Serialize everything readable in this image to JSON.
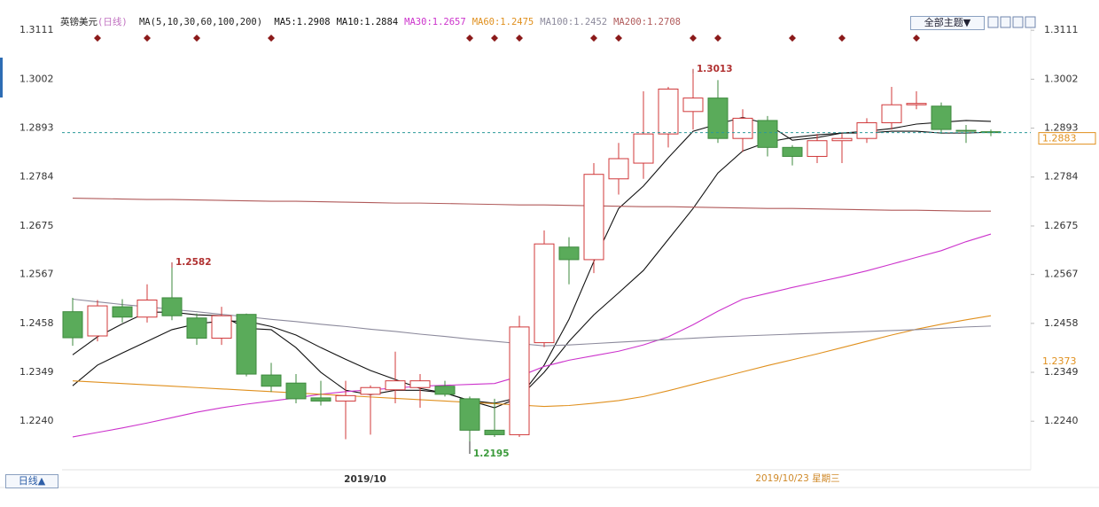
{
  "chart_data": {
    "type": "candlestick",
    "title": "英镑美元",
    "period": "(日线)",
    "ma_header": "MA(5,10,30,60,100,200)",
    "ylim": [
      1.2135,
      1.3135
    ],
    "yticks": [
      1.3111,
      {
        "value": 1.3002,
        "label": "1.3002"
      },
      1.2893,
      1.2784,
      1.2675,
      1.2567,
      1.2458,
      1.2349,
      {
        "value": 1.224,
        "label": "1.2240"
      }
    ],
    "open": [
      1.2484,
      1.243,
      1.2495,
      1.2472,
      1.2515,
      1.247,
      1.2425,
      1.2478,
      1.2343,
      1.2325,
      1.2292,
      1.2285,
      1.23,
      1.231,
      1.2315,
      1.2318,
      1.229,
      1.222,
      1.221,
      1.2415,
      1.2628,
      1.26,
      1.278,
      1.2815,
      1.288,
      1.293,
      1.296,
      1.287,
      1.291,
      1.285,
      1.283,
      1.2865,
      1.287,
      1.2905,
      1.2945,
      1.2942,
      1.2888,
      1.2885
    ],
    "high": [
      1.2515,
      1.251,
      1.2512,
      1.2545,
      1.2582,
      1.248,
      1.2495,
      1.248,
      1.237,
      1.2345,
      1.233,
      1.233,
      1.232,
      1.2395,
      1.2345,
      1.233,
      1.2295,
      1.229,
      1.2475,
      1.2665,
      1.265,
      1.2815,
      1.286,
      1.2975,
      1.2985,
      1.3013,
      1.3,
      1.2935,
      1.292,
      1.2855,
      1.288,
      1.288,
      1.2915,
      1.2985,
      1.2975,
      1.295,
      1.29,
      1.289
    ],
    "low": [
      1.2408,
      1.2418,
      1.246,
      1.246,
      1.2465,
      1.241,
      1.241,
      1.234,
      1.2305,
      1.228,
      1.2275,
      1.22,
      1.221,
      1.228,
      1.227,
      1.2295,
      1.2195,
      1.2205,
      1.2205,
      1.2405,
      1.2545,
      1.257,
      1.2745,
      1.278,
      1.285,
      1.289,
      1.286,
      1.284,
      1.283,
      1.281,
      1.2815,
      1.2815,
      1.286,
      1.289,
      1.2935,
      1.288,
      1.286,
      1.2875
    ],
    "close": [
      1.2426,
      1.2497,
      1.2472,
      1.251,
      1.2475,
      1.2425,
      1.2475,
      1.2345,
      1.2318,
      1.229,
      1.2285,
      1.2297,
      1.2315,
      1.233,
      1.233,
      1.23,
      1.222,
      1.221,
      1.245,
      1.2635,
      1.26,
      1.279,
      1.2825,
      1.288,
      1.298,
      1.296,
      1.287,
      1.2915,
      1.285,
      1.283,
      1.2865,
      1.287,
      1.2905,
      1.2945,
      1.2948,
      1.289,
      1.2887,
      1.2883
    ],
    "up_color": "#d0383a",
    "down_color": "#5aab5a",
    "series": [
      {
        "name": "MA5",
        "label": "MA5:1.2908",
        "color": "#111111",
        "values": [
          1.2388,
          1.2428,
          1.2457,
          1.2483,
          1.2483,
          1.2477,
          1.2475,
          1.2447,
          1.2444,
          1.2404,
          1.2349,
          1.2309,
          1.2299,
          1.2309,
          1.2309,
          1.2303,
          1.2286,
          1.227,
          1.2293,
          1.2365,
          1.2467,
          1.2596,
          1.2714,
          1.2764,
          1.2827,
          1.2886,
          1.2902,
          1.2917,
          1.2902,
          1.2866,
          1.2872,
          1.2882,
          1.2886,
          1.2892,
          1.2902,
          1.2906,
          1.291,
          1.2908
        ]
      },
      {
        "name": "MA10",
        "label": "MA10:1.2884",
        "color": "#111111",
        "values": [
          1.2319,
          1.2365,
          1.2392,
          1.2418,
          1.2444,
          1.2457,
          1.2463,
          1.2463,
          1.2451,
          1.2432,
          1.2404,
          1.2378,
          1.2353,
          1.2333,
          1.2313,
          1.2303,
          1.2286,
          1.228,
          1.2293,
          1.2349,
          1.2418,
          1.2477,
          1.2526,
          1.2576,
          1.2645,
          1.2714,
          1.2793,
          1.2842,
          1.2862,
          1.2872,
          1.2878,
          1.2882,
          1.2882,
          1.2886,
          1.2886,
          1.2882,
          1.2882,
          1.2884
        ]
      },
      {
        "name": "MA30",
        "label": "MA30:1.2657",
        "color": "#cc33cc",
        "values": [
          1.2205,
          1.2215,
          1.2225,
          1.2236,
          1.2248,
          1.226,
          1.227,
          1.2278,
          1.2285,
          1.2292,
          1.23,
          1.2306,
          1.231,
          1.2314,
          1.2318,
          1.232,
          1.2322,
          1.2324,
          1.234,
          1.2362,
          1.2376,
          1.2386,
          1.2396,
          1.241,
          1.2428,
          1.2455,
          1.2485,
          1.2512,
          1.2525,
          1.2538,
          1.255,
          1.2562,
          1.2575,
          1.259,
          1.2605,
          1.262,
          1.264,
          1.2657
        ]
      },
      {
        "name": "MA60",
        "label": "MA60:1.2475",
        "color": "#e0901e",
        "values": [
          1.233,
          1.2327,
          1.2324,
          1.2321,
          1.2318,
          1.2315,
          1.2312,
          1.2309,
          1.2306,
          1.2303,
          1.23,
          1.2297,
          1.2294,
          1.2291,
          1.2288,
          1.2285,
          1.2282,
          1.2279,
          1.2276,
          1.2273,
          1.2275,
          1.228,
          1.2286,
          1.2295,
          1.2308,
          1.2322,
          1.2336,
          1.235,
          1.2364,
          1.2377,
          1.239,
          1.2404,
          1.2418,
          1.2432,
          1.2445,
          1.2456,
          1.2466,
          1.2475
        ]
      },
      {
        "name": "MA100",
        "label": "MA100:1.2452",
        "color": "#8c8a9c",
        "values": [
          1.2512,
          1.2506,
          1.25,
          1.2495,
          1.2489,
          1.2484,
          1.2478,
          1.2473,
          1.2467,
          1.2462,
          1.2456,
          1.2451,
          1.2445,
          1.244,
          1.2434,
          1.2429,
          1.2423,
          1.2418,
          1.2413,
          1.2408,
          1.241,
          1.2413,
          1.2416,
          1.2419,
          1.2422,
          1.2425,
          1.2428,
          1.243,
          1.2432,
          1.2434,
          1.2436,
          1.2438,
          1.244,
          1.2442,
          1.2444,
          1.2447,
          1.245,
          1.2452
        ]
      },
      {
        "name": "MA200",
        "label": "MA200:1.2708",
        "color": "#b05a5a",
        "values": [
          1.2737,
          1.2736,
          1.2735,
          1.2734,
          1.2734,
          1.2733,
          1.2732,
          1.2731,
          1.273,
          1.273,
          1.2729,
          1.2728,
          1.2727,
          1.2726,
          1.2726,
          1.2725,
          1.2724,
          1.2723,
          1.2722,
          1.2722,
          1.2721,
          1.272,
          1.2719,
          1.2718,
          1.2718,
          1.2717,
          1.2716,
          1.2715,
          1.2714,
          1.2714,
          1.2713,
          1.2712,
          1.2711,
          1.271,
          1.271,
          1.2709,
          1.2708,
          1.2708
        ]
      }
    ],
    "annotations": [
      {
        "text": "1.2582",
        "index": 4,
        "at": "high"
      },
      {
        "text": "1.3013",
        "index": 25,
        "at": "high"
      },
      {
        "text": "1.2195",
        "index": 16,
        "at": "low"
      }
    ],
    "current_price": 1.2883,
    "marker_price": 1.2373,
    "x_label": "2019/10",
    "date_label": "2019/10/23 星期三",
    "period_button": "日线▲",
    "theme_button": "全部主题▼"
  }
}
